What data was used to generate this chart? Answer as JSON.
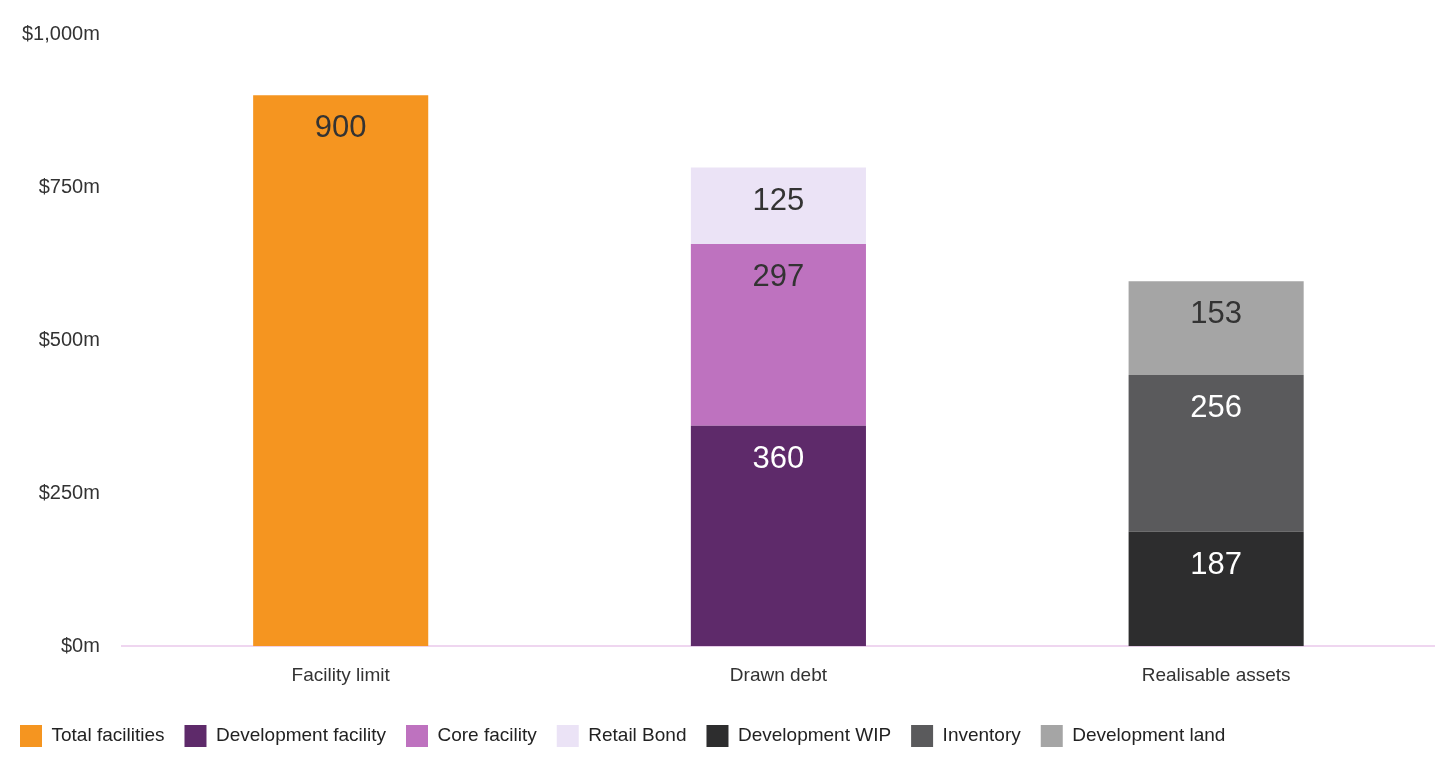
{
  "chart_data": {
    "type": "bar",
    "stacked": true,
    "categories": [
      "Facility limit",
      "Drawn debt",
      "Realisable assets"
    ],
    "series": [
      {
        "name": "Total facilities",
        "color": "#f59520",
        "values": [
          900,
          null,
          null
        ]
      },
      {
        "name": "Development facility",
        "color": "#5e2a6a",
        "values": [
          null,
          360,
          null
        ]
      },
      {
        "name": "Core facility",
        "color": "#be72bf",
        "values": [
          null,
          297,
          null
        ]
      },
      {
        "name": "Retail Bond",
        "color": "#ebe3f6",
        "values": [
          null,
          125,
          null
        ]
      },
      {
        "name": "Development WIP",
        "color": "#2d2d2e",
        "values": [
          null,
          null,
          187
        ]
      },
      {
        "name": "Inventory",
        "color": "#5a5a5c",
        "values": [
          null,
          null,
          256
        ]
      },
      {
        "name": "Development land",
        "color": "#a5a5a5",
        "values": [
          null,
          null,
          153
        ]
      }
    ],
    "ylim": [
      0,
      1000
    ],
    "yticks": [
      {
        "value": 0,
        "label": "$0m"
      },
      {
        "value": 250,
        "label": "$250m"
      },
      {
        "value": 500,
        "label": "$500m"
      },
      {
        "value": 750,
        "label": "$750m"
      },
      {
        "value": 1000,
        "label": "$1,000m"
      }
    ],
    "grid": false,
    "legend": "bottom",
    "data_labels": true
  }
}
